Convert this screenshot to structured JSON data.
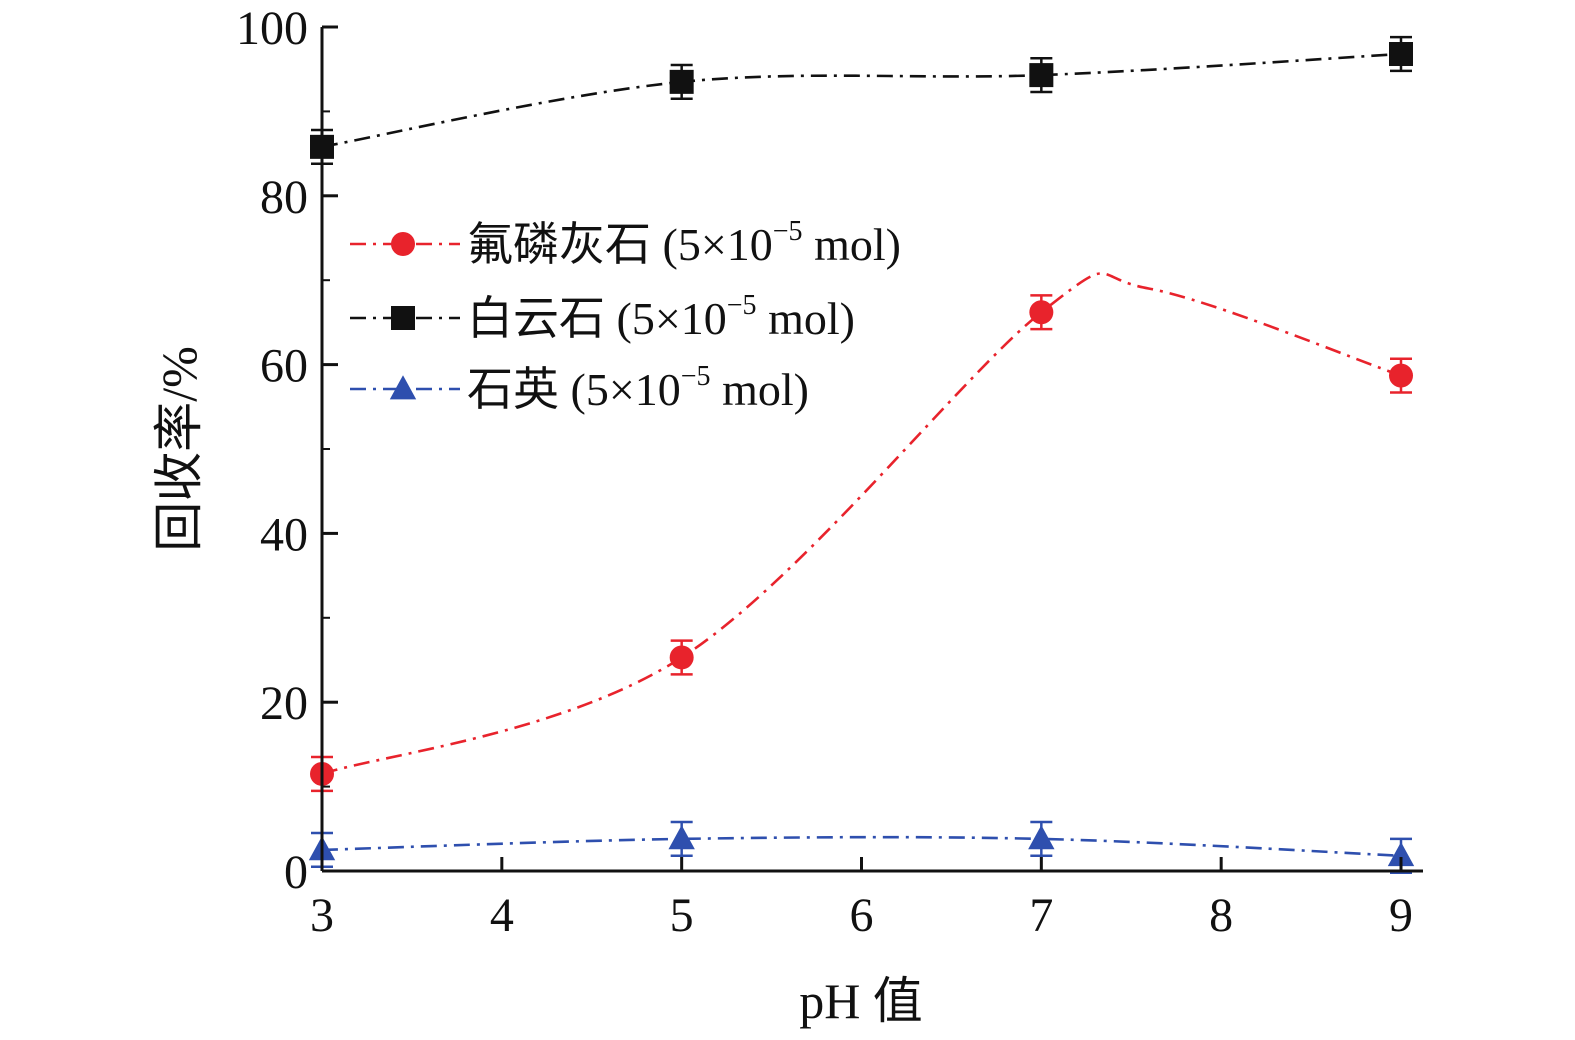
{
  "chart_data": {
    "type": "line",
    "xlabel": "pH 值",
    "ylabel": "回收率/%",
    "xlim": [
      3,
      9
    ],
    "ylim": [
      0,
      100
    ],
    "x_ticks": [
      "3",
      "4",
      "5",
      "6",
      "7",
      "8",
      "9"
    ],
    "y_ticks": [
      "0",
      "20",
      "40",
      "60",
      "80",
      "100"
    ],
    "legend_position": "center-left",
    "series": [
      {
        "name": "氟磷灰石 (5×10⁻⁵ mol)",
        "name_main": "氟磷灰石 (5×10",
        "name_exp": "−5",
        "name_tail": " mol)",
        "color": "#e8232c",
        "marker": "circle",
        "x": [
          3,
          5,
          7,
          9
        ],
        "y": [
          11.5,
          25.3,
          66.2,
          58.7
        ],
        "error": [
          2.0,
          2.0,
          2.0,
          2.0
        ],
        "curve_peak": [
          7.6,
          69.0
        ]
      },
      {
        "name": "白云石 (5×10⁻⁵ mol)",
        "name_main": "白云石 (5×10",
        "name_exp": "−5",
        "name_tail": " mol)",
        "color": "#111111",
        "marker": "square",
        "x": [
          3,
          5,
          7,
          9
        ],
        "y": [
          85.8,
          93.5,
          94.3,
          96.8
        ],
        "error": [
          2.0,
          2.0,
          2.0,
          2.0
        ]
      },
      {
        "name": "石英 (5×10⁻⁵ mol)",
        "name_main": "石英 (5×10",
        "name_exp": "−5",
        "name_tail": " mol)",
        "color": "#2e4fae",
        "marker": "triangle",
        "x": [
          3,
          5,
          7,
          9
        ],
        "y": [
          2.5,
          3.8,
          3.8,
          1.8
        ],
        "error": [
          2.0,
          2.0,
          2.0,
          2.0
        ]
      }
    ]
  }
}
